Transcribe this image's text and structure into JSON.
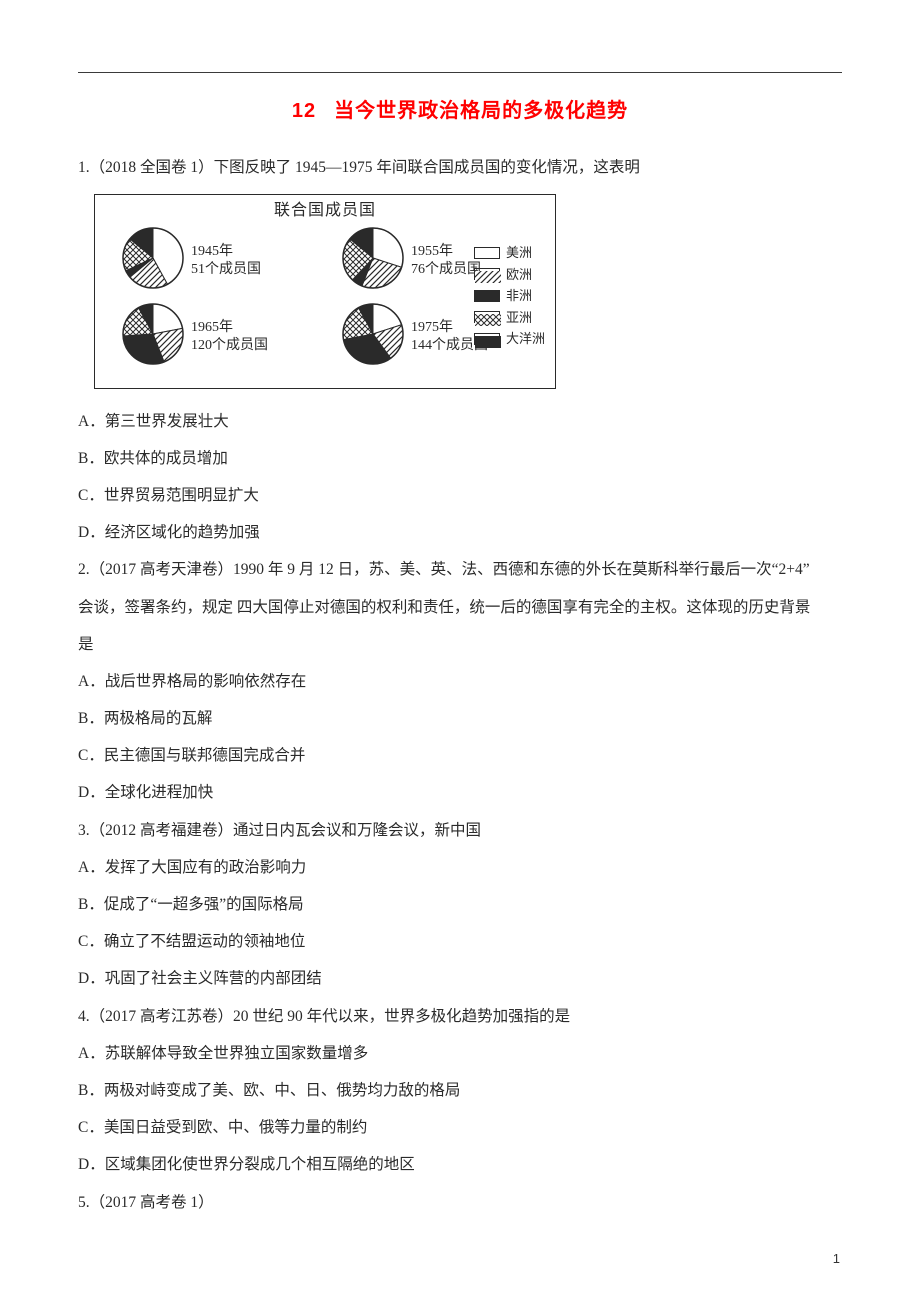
{
  "title": {
    "num": "12",
    "text": "当今世界政治格局的多极化趋势"
  },
  "colors": {
    "accent": "#ff0000",
    "text": "#2a2a2a",
    "border": "#2a2a2a",
    "bg": "#ffffff"
  },
  "figure": {
    "title": "联合国成员国",
    "pies": [
      {
        "year": "1945年",
        "count": "51个成员国",
        "slices": [
          {
            "pct": 42,
            "fill": "white"
          },
          {
            "pct": 22,
            "fill": "diag"
          },
          {
            "pct": 4,
            "fill": "black"
          },
          {
            "pct": 18,
            "fill": "cross"
          },
          {
            "pct": 14,
            "fill": "solid"
          }
        ]
      },
      {
        "year": "1955年",
        "count": "76个成员国",
        "slices": [
          {
            "pct": 30,
            "fill": "white"
          },
          {
            "pct": 26,
            "fill": "diag"
          },
          {
            "pct": 6,
            "fill": "black"
          },
          {
            "pct": 24,
            "fill": "cross"
          },
          {
            "pct": 14,
            "fill": "solid"
          }
        ]
      },
      {
        "year": "1965年",
        "count": "120个成员国",
        "slices": [
          {
            "pct": 22,
            "fill": "white"
          },
          {
            "pct": 22,
            "fill": "diag"
          },
          {
            "pct": 30,
            "fill": "black"
          },
          {
            "pct": 18,
            "fill": "cross"
          },
          {
            "pct": 8,
            "fill": "solid"
          }
        ]
      },
      {
        "year": "1975年",
        "count": "144个成员国",
        "slices": [
          {
            "pct": 20,
            "fill": "white"
          },
          {
            "pct": 20,
            "fill": "diag"
          },
          {
            "pct": 32,
            "fill": "black"
          },
          {
            "pct": 20,
            "fill": "cross"
          },
          {
            "pct": 8,
            "fill": "solid"
          }
        ]
      }
    ],
    "legend": [
      {
        "fill": "white",
        "label": "美洲"
      },
      {
        "fill": "diag",
        "label": "欧洲"
      },
      {
        "fill": "black",
        "label": "非洲"
      },
      {
        "fill": "cross",
        "label": "亚洲"
      },
      {
        "fill": "solid",
        "label": "大洋洲"
      }
    ],
    "pie_radius": 30,
    "stroke": "#2a2a2a"
  },
  "q1": {
    "stem": "1.（2018 全国卷 1）下图反映了 1945—1975 年间联合国成员国的变化情况，这表明",
    "A": "A．第三世界发展壮大",
    "B": "B．欧共体的成员增加",
    "C": "C．世界贸易范围明显扩大",
    "D": "D．经济区域化的趋势加强"
  },
  "q2": {
    "l1": "2.（2017 高考天津卷）1990 年 9 月 12 日，苏、美、英、法、西德和东德的外长在莫斯科举行最后一次“2+4”",
    "l2": "会谈，签署条约，规定 四大国停止对德国的权利和责任，统一后的德国享有完全的主权。这体现的历史背景",
    "l3": "是",
    "A": "A．战后世界格局的影响依然存在",
    "B": "B．两极格局的瓦解",
    "C": "C．民主德国与联邦德国完成合并",
    "D": "D．全球化进程加快"
  },
  "q3": {
    "stem": "3.（2012 高考福建卷）通过日内瓦会议和万隆会议，新中国",
    "A": "A．发挥了大国应有的政治影响力",
    "B": "B．促成了“一超多强”的国际格局",
    "C": "C．确立了不结盟运动的领袖地位",
    "D": "D．巩固了社会主义阵营的内部团结"
  },
  "q4": {
    "stem": "4.（2017 高考江苏卷）20 世纪 90 年代以来，世界多极化趋势加强指的是",
    "A": "A．苏联解体导致全世界独立国家数量增多",
    "B": "B．两极对峙变成了美、欧、中、日、俄势均力敌的格局",
    "C": "C．美国日益受到欧、中、俄等力量的制约",
    "D": "D．区域集团化使世界分裂成几个相互隔绝的地区"
  },
  "q5": {
    "stem": "5.（2017 高考卷 1）"
  },
  "page_number": "1"
}
